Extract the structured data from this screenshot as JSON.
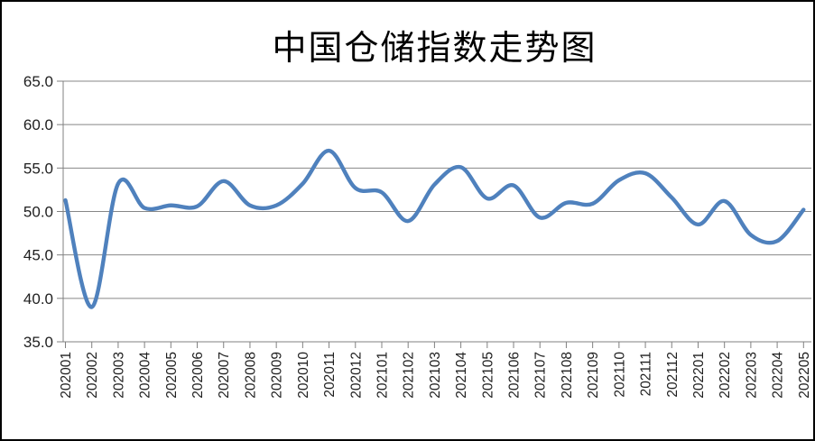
{
  "window": {
    "background": "#ffffff",
    "border_color": "#000000"
  },
  "chart_data": {
    "type": "line",
    "title": "中国仓储指数走势图",
    "smooth": true,
    "line_color": "#4F81BD",
    "gridline_color": "#878787",
    "axis_color": "#808080",
    "label_color": "#1f1f1f",
    "grid": true,
    "legend_position": "none",
    "ylim": [
      35.0,
      65.0
    ],
    "y_tick_step": 5.0,
    "y_tick_labels": [
      "65.0",
      "60.0",
      "55.0",
      "50.0",
      "45.0",
      "40.0",
      "35.0"
    ],
    "categories": [
      "202001",
      "202002",
      "202003",
      "202004",
      "202005",
      "202006",
      "202007",
      "202008",
      "202009",
      "202010",
      "202011",
      "202012",
      "202101",
      "202102",
      "202103",
      "202104",
      "202105",
      "202106",
      "202107",
      "202108",
      "202109",
      "202110",
      "202111",
      "202112",
      "202201",
      "202202",
      "202203",
      "202204",
      "202205"
    ],
    "values": [
      51.3,
      39.0,
      53.2,
      50.4,
      50.7,
      50.6,
      53.5,
      50.7,
      50.7,
      53.2,
      57.0,
      52.7,
      52.2,
      48.9,
      53.1,
      55.1,
      51.5,
      53.0,
      49.3,
      51.0,
      50.9,
      53.6,
      54.4,
      51.6,
      48.5,
      51.2,
      47.3,
      46.6,
      50.2
    ]
  }
}
